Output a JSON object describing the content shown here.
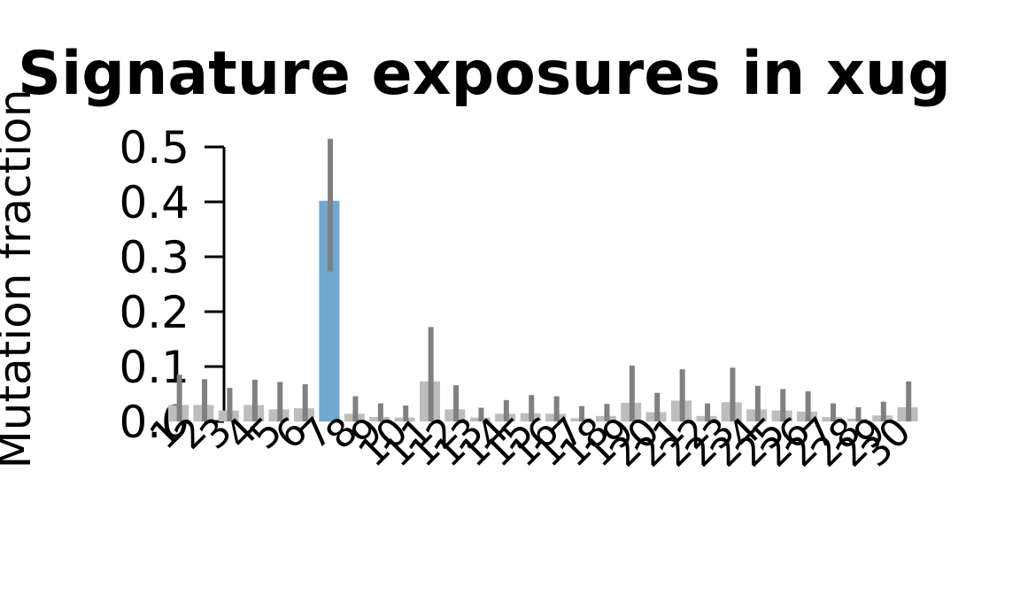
{
  "chart_data": {
    "type": "bar",
    "title": "Signature exposures in xug",
    "xlabel": "",
    "ylabel": "Mutation fraction",
    "ylim": [
      0,
      0.5
    ],
    "yticks": [
      "0.0",
      "0.1",
      "0.2",
      "0.3",
      "0.4",
      "0.5"
    ],
    "categories": [
      "1",
      "2",
      "3",
      "4",
      "5",
      "6",
      "7",
      "8",
      "9",
      "10",
      "11",
      "12",
      "13",
      "14",
      "15",
      "16",
      "17",
      "18",
      "19",
      "20",
      "21",
      "22",
      "23",
      "24",
      "25",
      "26",
      "27",
      "28",
      "29",
      "30"
    ],
    "values": [
      0.03,
      0.03,
      0.02,
      0.03,
      0.022,
      0.024,
      0.402,
      0.014,
      0.008,
      0.007,
      0.073,
      0.022,
      0.007,
      0.014,
      0.015,
      0.014,
      0.006,
      0.01,
      0.034,
      0.017,
      0.038,
      0.01,
      0.035,
      0.022,
      0.02,
      0.018,
      0.008,
      0.005,
      0.011,
      0.026
    ],
    "error_top": [
      0.085,
      0.077,
      0.061,
      0.076,
      0.072,
      0.068,
      0.515,
      0.046,
      0.033,
      0.029,
      0.172,
      0.066,
      0.025,
      0.039,
      0.048,
      0.046,
      0.028,
      0.032,
      0.102,
      0.052,
      0.095,
      0.033,
      0.098,
      0.065,
      0.059,
      0.055,
      0.033,
      0.026,
      0.036,
      0.073
    ],
    "error_bottom": [
      0.0,
      0.0,
      0.0,
      0.0,
      0.0,
      0.0,
      0.273,
      0.0,
      0.0,
      0.0,
      0.0,
      0.0,
      0.0,
      0.0,
      0.0,
      0.0,
      0.0,
      0.0,
      0.0,
      0.0,
      0.0,
      0.0,
      0.0,
      0.0,
      0.0,
      0.0,
      0.0,
      0.0,
      0.0,
      0.0
    ],
    "highlight_index": 6,
    "colors": {
      "highlight": "#6fa8d0",
      "bar": "#bdbdbd",
      "error": "#808080"
    },
    "grid": false,
    "legend": "none"
  }
}
